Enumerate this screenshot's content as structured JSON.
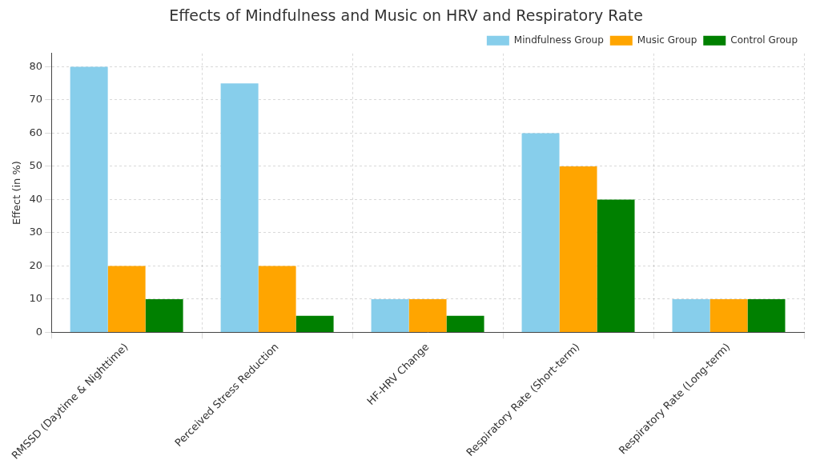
{
  "chart_data": {
    "type": "bar",
    "title": "Effects of Mindfulness and Music on HRV and Respiratory Rate",
    "y_label": "Effect (in %)",
    "categories": [
      "RMSSD (Daytime & Nighttime)",
      "Perceived Stress Reduction",
      "HF-HRV Change",
      "Respiratory Rate (Short-term)",
      "Respiratory Rate (Long-term)"
    ],
    "series": [
      {
        "name": "Mindfulness Group",
        "color": "#87ceeb",
        "values": [
          80,
          75,
          10,
          60,
          10
        ]
      },
      {
        "name": "Music Group",
        "color": "#ffa500",
        "values": [
          20,
          20,
          10,
          50,
          10
        ]
      },
      {
        "name": "Control Group",
        "color": "#008000",
        "values": [
          10,
          5,
          5,
          40,
          10
        ]
      }
    ],
    "ylim": [
      0,
      84
    ],
    "yticks": [
      0,
      10,
      20,
      30,
      40,
      50,
      60,
      70,
      80
    ],
    "grid": true,
    "legend": "upper right"
  }
}
